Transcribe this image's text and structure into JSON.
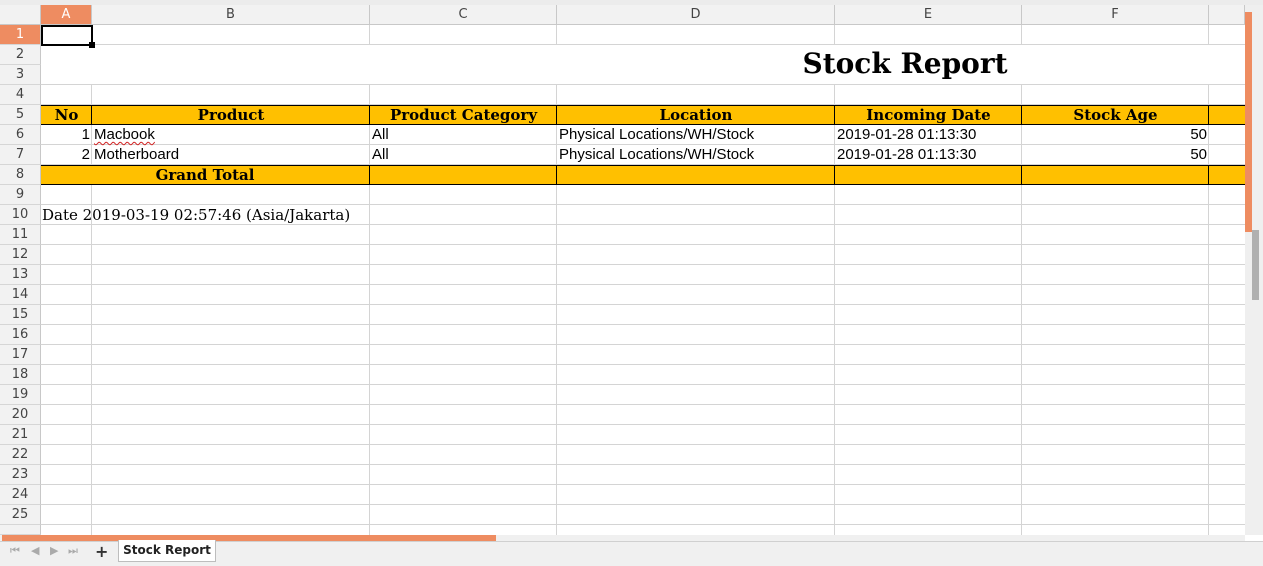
{
  "columns": [
    "A",
    "B",
    "C",
    "D",
    "E",
    "F"
  ],
  "active_column": "A",
  "rows": [
    "1",
    "2",
    "3",
    "4",
    "5",
    "6",
    "7",
    "8",
    "9",
    "10",
    "11",
    "12",
    "13",
    "14",
    "15",
    "16",
    "17",
    "18",
    "19",
    "20",
    "21",
    "22",
    "23",
    "24",
    "25"
  ],
  "active_row": "1",
  "report": {
    "title": "Stock Report",
    "headers": {
      "no": "No",
      "product": "Product",
      "category": "Product Category",
      "location": "Location",
      "incoming_date": "Incoming Date",
      "stock_age": "Stock Age"
    },
    "items": [
      {
        "no": "1",
        "product": "Macbook",
        "category": "All",
        "location": "Physical Locations/WH/Stock",
        "incoming_date": "2019-01-28 01:13:30",
        "stock_age": "50"
      },
      {
        "no": "2",
        "product": "Motherboard",
        "category": "All",
        "location": "Physical Locations/WH/Stock",
        "incoming_date": "2019-01-28 01:13:30",
        "stock_age": "50"
      }
    ],
    "grand_total": "Grand Total",
    "date_line": "Date 2019-03-19 02:57:46 (Asia/Jakarta)"
  },
  "sheet_tab": "Stock Report",
  "icons": {
    "add_sheet": "plus-icon",
    "nav": [
      "first-sheet-icon",
      "prev-sheet-icon",
      "next-sheet-icon",
      "last-sheet-icon"
    ]
  },
  "colors": {
    "header_band": "#ffc000",
    "accent": "#ee8c61",
    "grid": "#d4d4d4"
  }
}
